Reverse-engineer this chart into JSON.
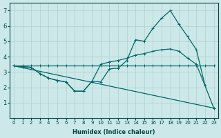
{
  "xlabel": "Humidex (Indice chaleur)",
  "xlim": [
    -0.5,
    23.5
  ],
  "ylim": [
    0,
    7.5
  ],
  "xticks": [
    0,
    1,
    2,
    3,
    4,
    5,
    6,
    7,
    8,
    9,
    10,
    11,
    12,
    13,
    14,
    15,
    16,
    17,
    18,
    19,
    20,
    21,
    22,
    23
  ],
  "yticks": [
    1,
    2,
    3,
    4,
    5,
    6,
    7
  ],
  "bg_color": "#cce8e8",
  "grid_color": "#b0d0d0",
  "line_color": "#006666",
  "line1_x": [
    0,
    1,
    2,
    3,
    4,
    5,
    6,
    7,
    8,
    9,
    10,
    11,
    12,
    13,
    14,
    15,
    16,
    17,
    18,
    19,
    20,
    21,
    22,
    23
  ],
  "line1_y": [
    3.4,
    3.4,
    3.4,
    3.4,
    3.4,
    3.4,
    3.4,
    3.4,
    3.4,
    3.4,
    3.4,
    3.4,
    3.4,
    3.4,
    3.4,
    3.4,
    3.4,
    3.4,
    3.4,
    3.4,
    3.4,
    3.4,
    3.4,
    3.4
  ],
  "line2_x": [
    0,
    1,
    2,
    3,
    4,
    5,
    6,
    7,
    8,
    9,
    10,
    11,
    12,
    13,
    14,
    15,
    16,
    17,
    18,
    19,
    20,
    21,
    22,
    23
  ],
  "line2_y": [
    3.4,
    3.35,
    3.3,
    2.9,
    2.6,
    2.45,
    2.35,
    1.75,
    1.75,
    2.4,
    2.35,
    3.2,
    3.25,
    3.75,
    5.1,
    5.0,
    5.85,
    6.5,
    7.0,
    6.1,
    5.3,
    4.45,
    2.1,
    0.65
  ],
  "line3_x": [
    0,
    1,
    2,
    3,
    4,
    5,
    6,
    7,
    8,
    9,
    10,
    11,
    12,
    13,
    14,
    15,
    16,
    17,
    18,
    19,
    20,
    21,
    22
  ],
  "line3_y": [
    3.4,
    3.35,
    3.3,
    2.9,
    2.6,
    2.45,
    2.35,
    1.75,
    1.75,
    2.4,
    3.5,
    3.65,
    3.75,
    3.9,
    4.1,
    4.2,
    4.35,
    4.45,
    4.5,
    4.35,
    3.9,
    3.5,
    2.1
  ],
  "line4_x": [
    0,
    23
  ],
  "line4_y": [
    3.4,
    0.65
  ]
}
